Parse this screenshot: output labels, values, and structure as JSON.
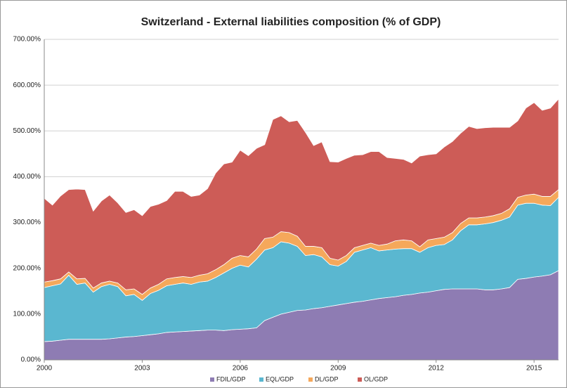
{
  "chart_data": {
    "type": "stacked_area",
    "title": "Switzerland - External liabilities composition (% of GDP)",
    "x": [
      2000,
      2000.25,
      2000.5,
      2000.75,
      2001,
      2001.25,
      2001.5,
      2001.75,
      2002,
      2002.25,
      2002.5,
      2002.75,
      2003,
      2003.25,
      2003.5,
      2003.75,
      2004,
      2004.25,
      2004.5,
      2004.75,
      2005,
      2005.25,
      2005.5,
      2005.75,
      2006,
      2006.25,
      2006.5,
      2006.75,
      2007,
      2007.25,
      2007.5,
      2007.75,
      2008,
      2008.25,
      2008.5,
      2008.75,
      2009,
      2009.25,
      2009.5,
      2009.75,
      2010,
      2010.25,
      2010.5,
      2010.75,
      2011,
      2011.25,
      2011.5,
      2011.75,
      2012,
      2012.25,
      2012.5,
      2012.75,
      2013,
      2013.25,
      2013.5,
      2013.75,
      2014,
      2014.25,
      2014.5,
      2014.75,
      2015,
      2015.25,
      2015.5,
      2015.75
    ],
    "xlim": [
      2000,
      2015.75
    ],
    "xticks": [
      2000,
      2003,
      2006,
      2009,
      2012,
      2015
    ],
    "ylim": [
      0,
      700
    ],
    "yticks": [
      {
        "value": 0,
        "label": "0.00%"
      },
      {
        "value": 100,
        "label": "100.00%"
      },
      {
        "value": 200,
        "label": "200.00%"
      },
      {
        "value": 300,
        "label": "300.00%"
      },
      {
        "value": 400,
        "label": "400.00%"
      },
      {
        "value": 500,
        "label": "500.00%"
      },
      {
        "value": 600,
        "label": "600.00%"
      },
      {
        "value": 700,
        "label": "700.00%"
      }
    ],
    "grid": true,
    "legend": "bottom",
    "series": [
      {
        "name": "FDIL/GDP",
        "color": "#8e7cb3",
        "values": [
          40,
          41,
          43,
          45,
          45,
          45,
          45,
          45,
          46,
          48,
          50,
          51,
          53,
          55,
          57,
          60,
          61,
          62,
          63,
          64,
          65,
          65,
          64,
          66,
          67,
          68,
          70,
          86,
          93,
          100,
          104,
          108,
          109,
          112,
          114,
          117,
          120,
          123,
          126,
          128,
          131,
          134,
          136,
          138,
          141,
          143,
          146,
          148,
          151,
          154,
          155,
          155,
          155,
          155,
          153,
          153,
          155,
          158,
          176,
          178,
          181,
          183,
          186,
          195
        ]
      },
      {
        "name": "EQL/GDP",
        "color": "#5ab7d0",
        "values": [
          118,
          121,
          123,
          140,
          120,
          123,
          103,
          115,
          119,
          112,
          90,
          92,
          77,
          90,
          95,
          102,
          104,
          106,
          102,
          106,
          107,
          115,
          126,
          134,
          140,
          135,
          150,
          154,
          152,
          158,
          151,
          140,
          119,
          118,
          111,
          91,
          85,
          92,
          109,
          112,
          114,
          104,
          104,
          104,
          102,
          100,
          89,
          97,
          99,
          98,
          107,
          127,
          140,
          140,
          144,
          147,
          150,
          154,
          162,
          164,
          161,
          155,
          151,
          160
        ]
      },
      {
        "name": "DL/GDP",
        "color": "#f5a85b",
        "values": [
          12,
          11,
          11,
          7,
          12,
          10,
          9,
          8,
          7,
          8,
          13,
          12,
          13,
          12,
          13,
          15,
          15,
          14,
          15,
          15,
          16,
          17,
          18,
          22,
          21,
          22,
          22,
          25,
          23,
          22,
          23,
          22,
          20,
          18,
          20,
          14,
          13,
          13,
          10,
          10,
          10,
          12,
          13,
          18,
          19,
          17,
          12,
          17,
          15,
          16,
          16,
          16,
          15,
          15,
          15,
          15,
          15,
          18,
          17,
          18,
          20,
          19,
          20,
          17
        ]
      },
      {
        "name": "OL/GDP",
        "color": "#cd5c57",
        "values": [
          183,
          165,
          181,
          180,
          196,
          194,
          168,
          179,
          188,
          175,
          169,
          173,
          172,
          178,
          175,
          171,
          188,
          186,
          177,
          175,
          186,
          211,
          220,
          210,
          230,
          221,
          220,
          205,
          257,
          253,
          242,
          253,
          249,
          220,
          231,
          211,
          214,
          212,
          202,
          198,
          200,
          205,
          189,
          180,
          176,
          170,
          198,
          186,
          185,
          197,
          199,
          197,
          200,
          195,
          195,
          193,
          188,
          178,
          167,
          190,
          200,
          188,
          193,
          198
        ]
      }
    ]
  }
}
